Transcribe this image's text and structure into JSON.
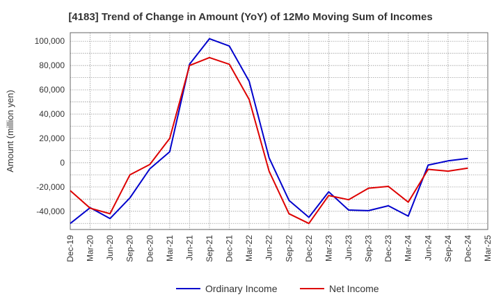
{
  "chart_data": {
    "type": "line",
    "title": "[4183]  Trend of Change in Amount (YoY) of 12Mo Moving Sum of Incomes",
    "xlabel": "",
    "ylabel": "Amount (million yen)",
    "ylim": [
      -55000,
      107000
    ],
    "yticks": [
      100000,
      80000,
      60000,
      40000,
      20000,
      0,
      -20000,
      -40000
    ],
    "ytick_labels": [
      "100,000",
      "80,000",
      "60,000",
      "40,000",
      "20,000",
      "0",
      "-20,000",
      "-40,000"
    ],
    "categories": [
      "Dec-19",
      "Mar-20",
      "Jun-20",
      "Sep-20",
      "Dec-20",
      "Mar-21",
      "Jun-21",
      "Sep-21",
      "Dec-21",
      "Mar-22",
      "Jun-22",
      "Sep-22",
      "Dec-22",
      "Mar-23",
      "Jun-23",
      "Sep-23",
      "Dec-23",
      "Mar-24",
      "Jun-24",
      "Sep-24",
      "Dec-24",
      "Mar-25"
    ],
    "grid": true,
    "legend_position": "bottom",
    "series": [
      {
        "name": "Ordinary Income",
        "color": "#0000cc",
        "values": [
          -50000,
          -37000,
          -46000,
          -29000,
          -5000,
          9000,
          81000,
          102000,
          96000,
          67000,
          4000,
          -31000,
          -45000,
          -24000,
          -39000,
          -39500,
          -35500,
          -44000,
          -2000,
          1500,
          3500,
          null
        ]
      },
      {
        "name": "Net Income",
        "color": "#dd0000",
        "values": [
          -23000,
          -37500,
          -42000,
          -10000,
          -1500,
          20000,
          80000,
          86500,
          81000,
          52000,
          -7000,
          -42000,
          -50000,
          -27000,
          -30500,
          -21000,
          -19500,
          -32500,
          -5500,
          -7000,
          -4500,
          null
        ]
      }
    ]
  }
}
